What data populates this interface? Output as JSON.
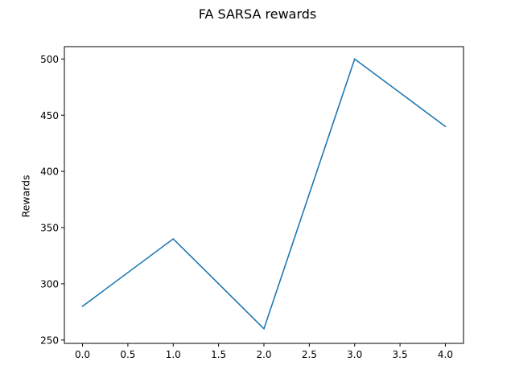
{
  "chart_data": {
    "type": "line",
    "title": "FA SARSA rewards",
    "xlabel": "",
    "ylabel": "Rewards",
    "x": [
      0,
      1,
      2,
      3,
      4
    ],
    "series": [
      {
        "values": [
          280,
          340,
          260,
          500,
          440
        ],
        "color": "#1f77b4"
      }
    ],
    "xlim": [
      -0.2,
      4.2
    ],
    "ylim": [
      247,
      511
    ],
    "xticks": [
      0.0,
      0.5,
      1.0,
      1.5,
      2.0,
      2.5,
      3.0,
      3.5,
      4.0
    ],
    "xtick_labels": [
      "0.0",
      "0.5",
      "1.0",
      "1.5",
      "2.0",
      "2.5",
      "3.0",
      "3.5",
      "4.0"
    ],
    "yticks": [
      250,
      300,
      350,
      400,
      450,
      500
    ],
    "ytick_labels": [
      "250",
      "300",
      "350",
      "400",
      "450",
      "500"
    ],
    "grid": false,
    "legend": "none"
  }
}
